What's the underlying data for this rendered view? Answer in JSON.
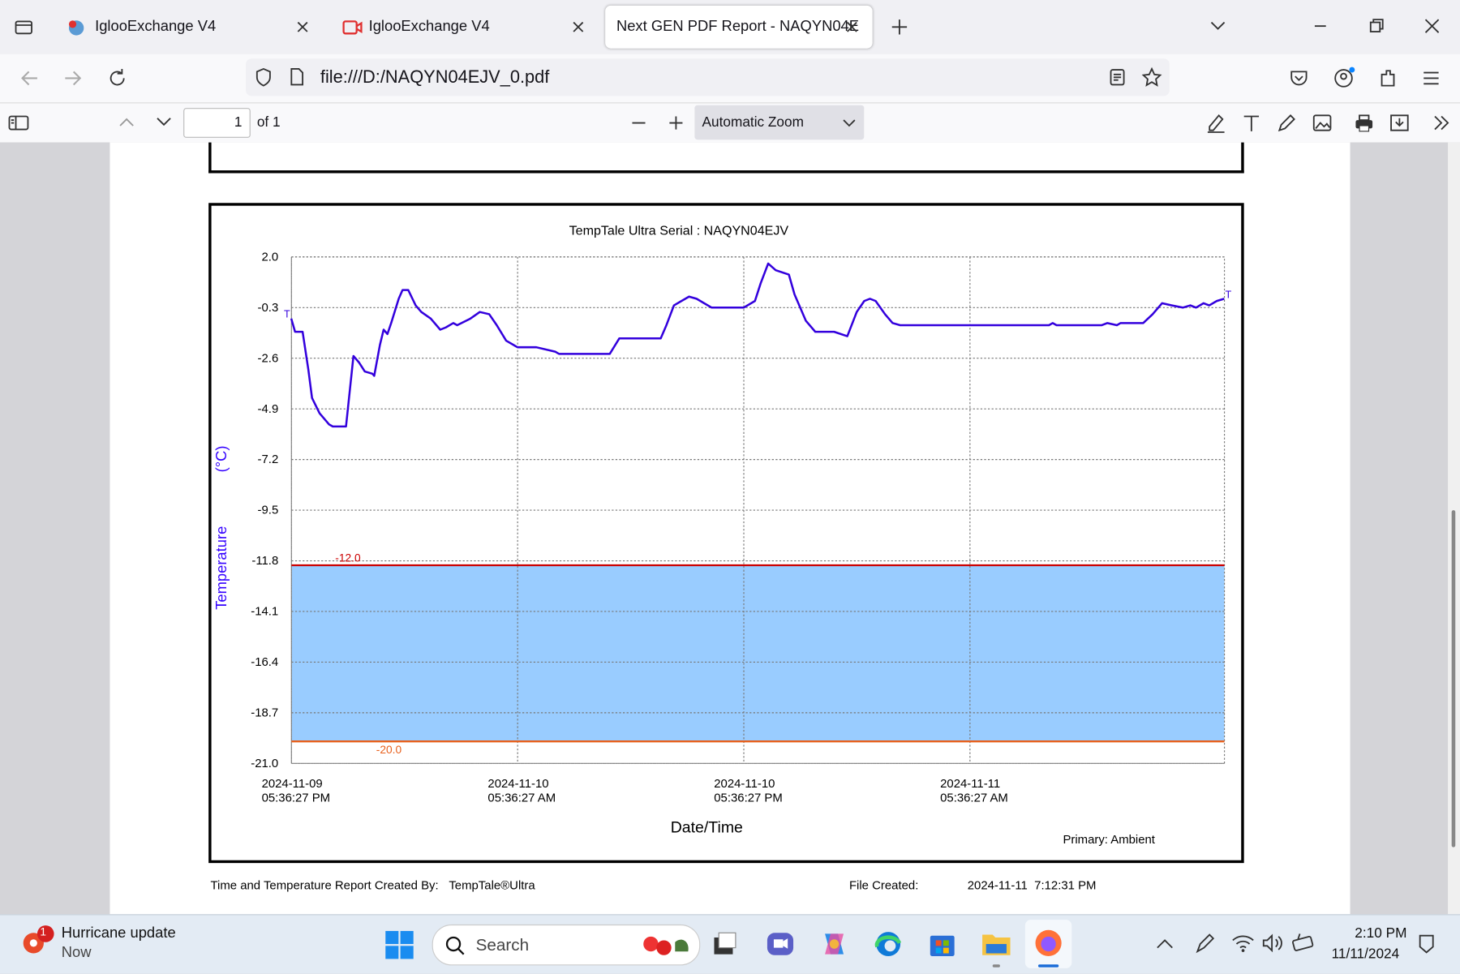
{
  "browser": {
    "tabs": [
      "IglooExchange V4",
      "IglooExchange V4",
      "Next GEN PDF Report - NAQYN04E"
    ],
    "url": "file:///D:/NAQYN04EJV_0.pdf",
    "pdf_toolbar": {
      "page": "1",
      "of": "of 1",
      "zoom": "Automatic Zoom"
    }
  },
  "chart_data": {
    "type": "line",
    "title": "TempTale Ultra  Serial : NAQYN04EJV",
    "y_label": "Temperature",
    "y_unit": "(°C)",
    "x_label": "Date/Time",
    "note": "Primary: Ambient",
    "x": [
      "2024-11-09T17:36",
      "2024-11-09T17:48",
      "2024-11-09T18:12",
      "2024-11-09T18:30",
      "2024-11-09T18:42",
      "2024-11-09T19:06",
      "2024-11-09T19:36",
      "2024-11-09T19:48",
      "2024-11-09T20:30",
      "2024-11-09T20:54",
      "2024-11-09T21:12",
      "2024-11-09T21:30",
      "2024-11-09T21:54",
      "2024-11-09T22:00",
      "2024-11-09T22:18",
      "2024-11-09T22:30",
      "2024-11-09T22:42",
      "2024-11-09T22:54",
      "2024-11-09T23:18",
      "2024-11-09T23:30",
      "2024-11-09T23:48",
      "2024-11-10T00:12",
      "2024-11-10T00:30",
      "2024-11-10T01:00",
      "2024-11-10T01:30",
      "2024-11-10T01:48",
      "2024-11-10T02:12",
      "2024-11-10T02:24",
      "2024-11-10T03:06",
      "2024-11-10T03:36",
      "2024-11-10T04:06",
      "2024-11-10T04:30",
      "2024-11-10T05:00",
      "2024-11-10T05:36",
      "2024-11-10T06:36",
      "2024-11-10T07:36",
      "2024-11-10T07:48",
      "2024-11-10T10:30",
      "2024-11-10T11:00",
      "2024-11-10T13:12",
      "2024-11-10T13:30",
      "2024-11-10T13:54",
      "2024-11-10T14:18",
      "2024-11-10T14:42",
      "2024-11-10T15:06",
      "2024-11-10T15:30",
      "2024-11-10T15:54",
      "2024-11-10T17:36",
      "2024-11-10T18:12",
      "2024-11-10T18:30",
      "2024-11-10T18:54",
      "2024-11-10T19:18",
      "2024-11-10T20:00",
      "2024-11-10T20:18",
      "2024-11-10T20:54",
      "2024-11-10T21:24",
      "2024-11-10T22:24",
      "2024-11-10T23:06",
      "2024-11-10T23:36",
      "2024-11-11T00:00",
      "2024-11-11T00:18",
      "2024-11-11T00:36",
      "2024-11-11T01:06",
      "2024-11-11T01:30",
      "2024-11-11T01:54",
      "2024-11-11T02:18",
      "2024-11-11T09:48",
      "2024-11-11T10:00",
      "2024-11-11T10:12",
      "2024-11-11T12:36",
      "2024-11-11T12:54",
      "2024-11-11T13:24",
      "2024-11-11T13:36",
      "2024-11-11T14:48",
      "2024-11-11T15:18",
      "2024-11-11T15:48",
      "2024-11-11T16:18",
      "2024-11-11T16:54",
      "2024-11-11T17:18",
      "2024-11-11T17:36",
      "2024-11-11T18:00",
      "2024-11-11T18:18",
      "2024-11-11T18:42",
      "2024-11-11T19:06"
    ],
    "series": [
      {
        "color": "#3300dd",
        "values": [
          -0.8,
          -1.4,
          -1.4,
          -3.1,
          -4.4,
          -5.1,
          -5.6,
          -5.7,
          -5.7,
          -2.5,
          -2.8,
          -3.2,
          -3.3,
          -3.4,
          -2.0,
          -1.3,
          -1.5,
          -1.0,
          0.1,
          0.5,
          0.5,
          -0.2,
          -0.5,
          -0.8,
          -1.3,
          -1.2,
          -1.0,
          -1.1,
          -0.8,
          -0.5,
          -0.6,
          -1.1,
          -1.8,
          -2.1,
          -2.1,
          -2.3,
          -2.4,
          -2.4,
          -1.7,
          -1.7,
          -1.1,
          -0.2,
          0.0,
          0.2,
          0.1,
          -0.1,
          -0.3,
          -0.3,
          0.0,
          0.8,
          1.7,
          1.4,
          1.2,
          0.3,
          -0.9,
          -1.4,
          -1.4,
          -1.6,
          -0.5,
          0.0,
          0.1,
          0.0,
          -0.6,
          -1.0,
          -1.1,
          -1.1,
          -1.1,
          -1.0,
          -1.1,
          -1.1,
          -1.0,
          -1.1,
          -1.0,
          -1.0,
          -0.6,
          -0.1,
          -0.2,
          -0.3,
          -0.2,
          -0.3,
          -0.1,
          -0.2,
          0.0,
          0.1
        ]
      }
    ],
    "markers": [
      "T",
      "T"
    ],
    "xlim": [
      "2024-11-09T17:36:27",
      "2024-11-11T19:06:27"
    ],
    "xticks": [
      {
        "value": "2024-11-09T17:36:27",
        "label": [
          "2024-11-09",
          "05:36:27 PM"
        ]
      },
      {
        "value": "2024-11-10T05:36:27",
        "label": [
          "2024-11-10",
          "05:36:27 AM"
        ]
      },
      {
        "value": "2024-11-10T17:36:27",
        "label": [
          "2024-11-10",
          "05:36:27 PM"
        ]
      },
      {
        "value": "2024-11-11T05:36:27",
        "label": [
          "2024-11-11",
          "05:36:27 AM"
        ]
      }
    ],
    "ylim": [
      -21,
      2
    ],
    "yticks": [
      {
        "value": 2,
        "label": "2.0"
      },
      -0.3,
      -2.6,
      -4.9,
      -7.2,
      -9.5,
      -11.8,
      -14.1,
      -16.4,
      -18.7,
      {
        "value": -21,
        "label": "-21.0"
      }
    ],
    "grid": true,
    "thresholds": [
      {
        "value": -12,
        "label": "-12.0",
        "color": "#cc0000"
      },
      {
        "value": -20,
        "label": "-20.0",
        "color": "#e8601c"
      }
    ],
    "band_color": "#99ccff"
  },
  "report_footer": {
    "created_by": "Time and Temperature Report Created By:",
    "product": "TempTale®Ultra",
    "file_created": "File Created:",
    "file_date": "2024-11-11  7:12:31 PM"
  },
  "taskbar": {
    "notification_count": "1",
    "notification_title": "Hurricane update",
    "notification_time": "Now",
    "search": "Search",
    "time": "2:10 PM",
    "date": "11/11/2024"
  }
}
